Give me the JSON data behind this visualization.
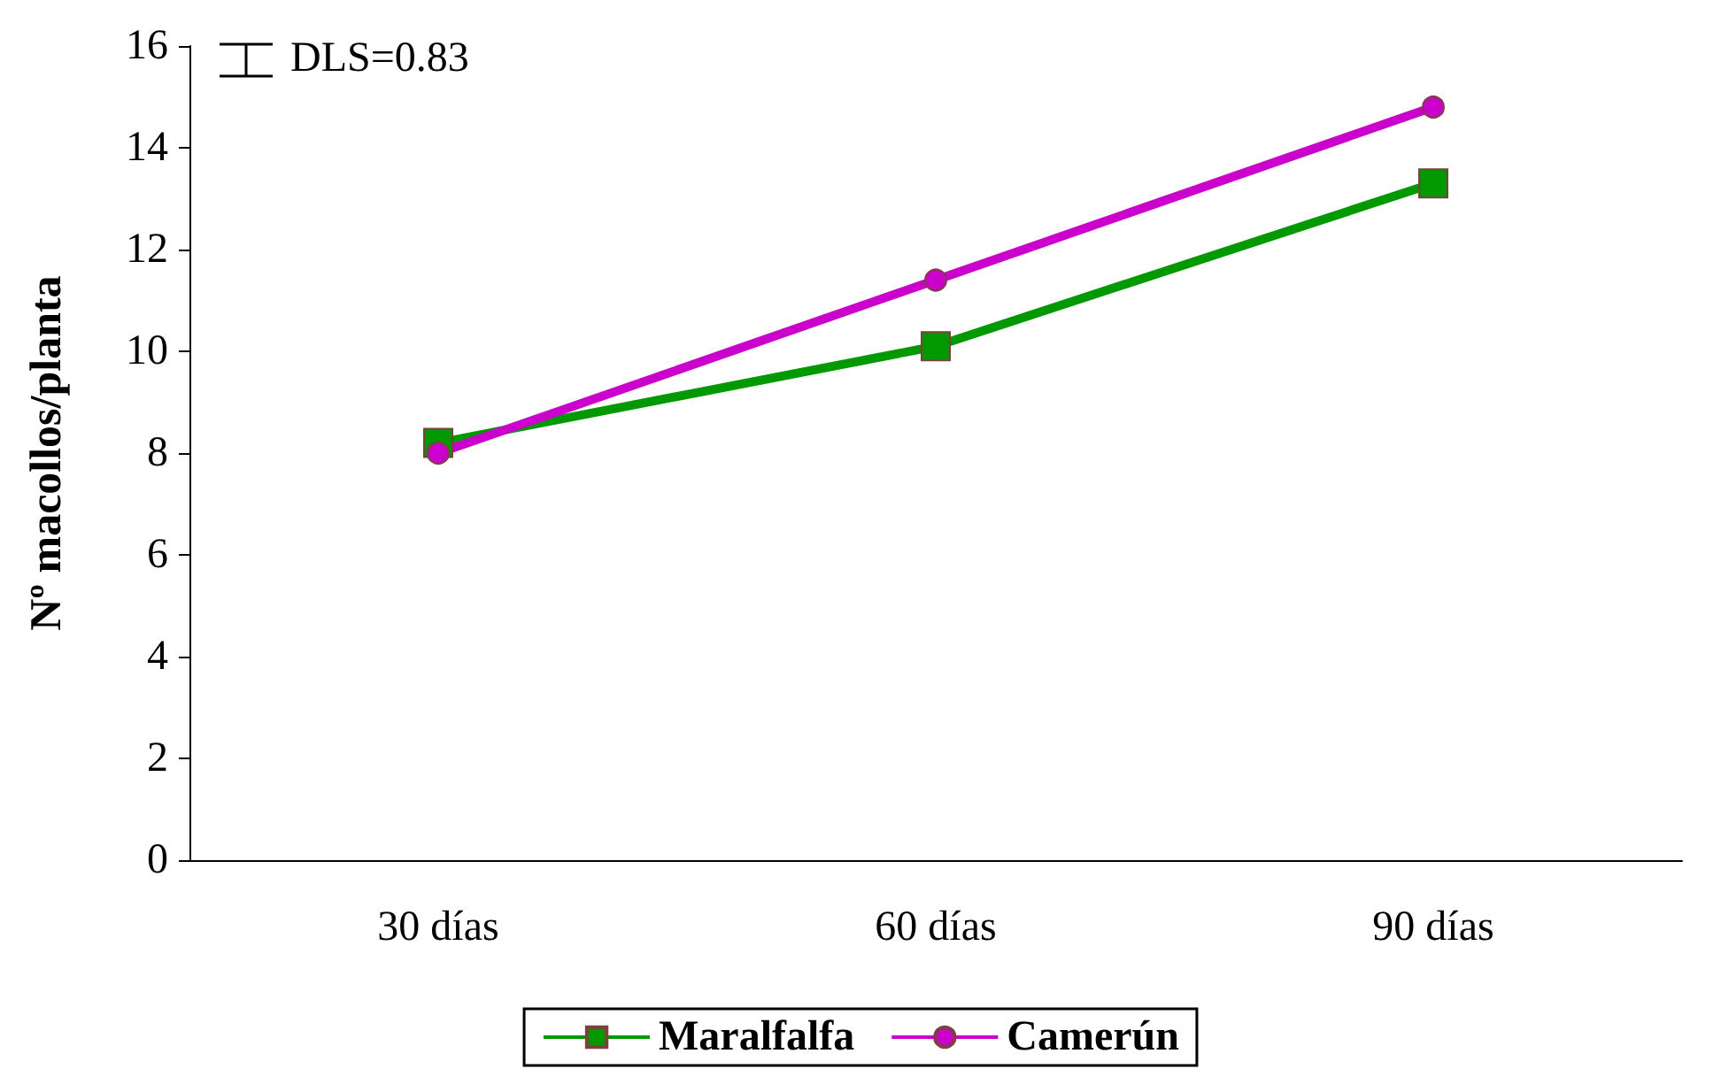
{
  "chart_data": {
    "type": "line",
    "ylabel": "Nº macollos/planta",
    "categories": [
      "30 días",
      "60 días",
      "90 días"
    ],
    "series": [
      {
        "name": "Maralfalfa",
        "color": "#009900",
        "marker": "square",
        "values": [
          8.2,
          10.1,
          13.3
        ]
      },
      {
        "name": "Camerún",
        "color": "#cc00cc",
        "marker": "circle",
        "values": [
          8.0,
          11.4,
          14.8
        ]
      }
    ],
    "ylim": [
      0,
      16
    ],
    "yticks": [
      0,
      2,
      4,
      6,
      8,
      10,
      12,
      14,
      16
    ],
    "grid": false,
    "legend": "bottom",
    "line_style": "solid",
    "annotations": [
      "DLS=0.83"
    ]
  }
}
